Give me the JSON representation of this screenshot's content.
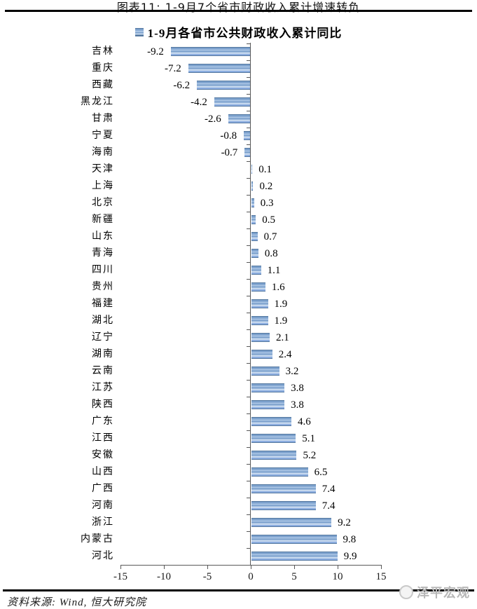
{
  "header": {
    "caption": "图表11: 1-9月7个省市财政收入累计增速转负"
  },
  "legend": {
    "label": "1-9月各省市公共财政收入累计同比",
    "marker_color": "#7ba0cc"
  },
  "chart_data": {
    "type": "bar",
    "orientation": "horizontal",
    "title": "1-9月各省市公共财政收入累计同比",
    "categories": [
      "吉林",
      "重庆",
      "西藏",
      "黑龙江",
      "甘肃",
      "宁夏",
      "海南",
      "天津",
      "上海",
      "北京",
      "新疆",
      "山东",
      "青海",
      "四川",
      "贵州",
      "福建",
      "湖北",
      "辽宁",
      "湖南",
      "云南",
      "江苏",
      "陕西",
      "广东",
      "江西",
      "安徽",
      "山西",
      "广西",
      "河南",
      "浙江",
      "内蒙古",
      "河北"
    ],
    "values": [
      -9.2,
      -7.2,
      -6.2,
      -4.2,
      -2.6,
      -0.8,
      -0.7,
      0.1,
      0.2,
      0.3,
      0.5,
      0.7,
      0.8,
      1.1,
      1.6,
      1.9,
      1.9,
      2.1,
      2.4,
      3.2,
      3.8,
      3.8,
      4.6,
      5.1,
      5.2,
      6.5,
      7.4,
      7.4,
      9.2,
      9.8,
      9.9
    ],
    "xlabel": "",
    "ylabel": "",
    "xlim": [
      -15,
      15
    ],
    "x_ticks": [
      -15,
      -10,
      -5,
      0,
      5,
      10,
      15
    ],
    "value_labels": true,
    "grid": false,
    "legend_position": "top-center",
    "bar_color": "#7ba0cc",
    "bar_edge_color": "#53779f",
    "axis_color": "#595959"
  },
  "footer": {
    "source": "资料来源: Wind, 恒大研究院",
    "watermark": "泽平宏观"
  }
}
